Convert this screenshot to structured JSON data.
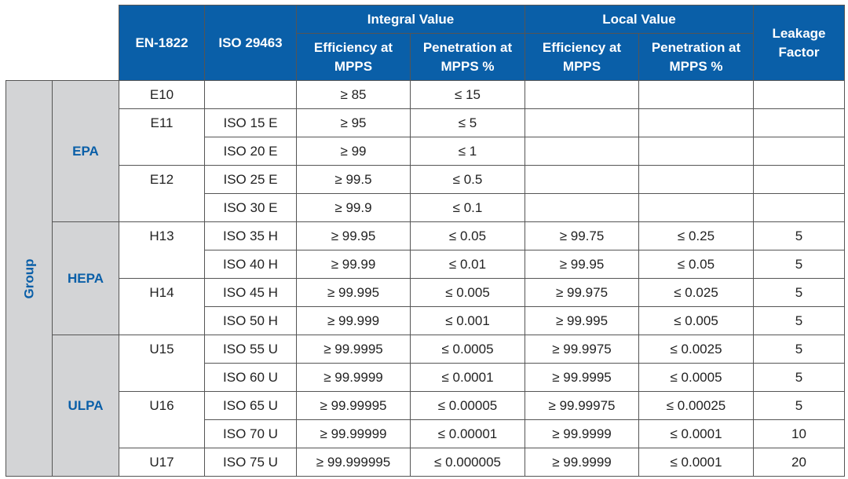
{
  "headers": {
    "en": "EN-1822",
    "iso": "ISO 29463",
    "integral": "Integral Value",
    "local": "Local Value",
    "efficiency": "Efficiency at MPPS",
    "penetration": "Penetration at MPPS %",
    "leakage": "Leakage Factor"
  },
  "group_label": "Group",
  "classes": {
    "epa": "EPA",
    "hepa": "HEPA",
    "ulpa": "ULPA"
  },
  "en": {
    "e10": "E10",
    "e11": "E11",
    "e12": "E12",
    "h13": "H13",
    "h14": "H14",
    "u15": "U15",
    "u16": "U16",
    "u17": "U17"
  },
  "rows": [
    {
      "iso": "",
      "ie": "≥ 85",
      "ip": "≤ 15",
      "le": "",
      "lp": "",
      "lf": ""
    },
    {
      "iso": "ISO 15 E",
      "ie": "≥ 95",
      "ip": "≤ 5",
      "le": "",
      "lp": "",
      "lf": ""
    },
    {
      "iso": "ISO 20 E",
      "ie": "≥ 99",
      "ip": "≤ 1",
      "le": "",
      "lp": "",
      "lf": ""
    },
    {
      "iso": "ISO 25 E",
      "ie": "≥ 99.5",
      "ip": "≤ 0.5",
      "le": "",
      "lp": "",
      "lf": ""
    },
    {
      "iso": "ISO 30 E",
      "ie": "≥ 99.9",
      "ip": "≤ 0.1",
      "le": "",
      "lp": "",
      "lf": ""
    },
    {
      "iso": "ISO 35 H",
      "ie": "≥ 99.95",
      "ip": "≤ 0.05",
      "le": "≥ 99.75",
      "lp": "≤ 0.25",
      "lf": "5"
    },
    {
      "iso": "ISO 40 H",
      "ie": "≥ 99.99",
      "ip": "≤ 0.01",
      "le": "≥ 99.95",
      "lp": "≤ 0.05",
      "lf": "5"
    },
    {
      "iso": "ISO 45 H",
      "ie": "≥ 99.995",
      "ip": "≤ 0.005",
      "le": "≥ 99.975",
      "lp": "≤ 0.025",
      "lf": "5"
    },
    {
      "iso": "ISO 50 H",
      "ie": "≥ 99.999",
      "ip": "≤ 0.001",
      "le": "≥ 99.995",
      "lp": "≤ 0.005",
      "lf": "5"
    },
    {
      "iso": "ISO 55 U",
      "ie": "≥ 99.9995",
      "ip": "≤ 0.0005",
      "le": "≥ 99.9975",
      "lp": "≤ 0.0025",
      "lf": "5"
    },
    {
      "iso": "ISO 60 U",
      "ie": "≥ 99.9999",
      "ip": "≤ 0.0001",
      "le": "≥ 99.9995",
      "lp": "≤ 0.0005",
      "lf": "5"
    },
    {
      "iso": "ISO 65 U",
      "ie": "≥ 99.99995",
      "ip": "≤ 0.00005",
      "le": "≥ 99.99975",
      "lp": "≤ 0.00025",
      "lf": "5"
    },
    {
      "iso": "ISO 70 U",
      "ie": "≥ 99.99999",
      "ip": "≤ 0.00001",
      "le": "≥ 99.9999",
      "lp": "≤ 0.0001",
      "lf": "10"
    },
    {
      "iso": "ISO 75 U",
      "ie": "≥ 99.999995",
      "ip": "≤ 0.000005",
      "le": "≥ 99.9999",
      "lp": "≤ 0.0001",
      "lf": "20"
    }
  ]
}
